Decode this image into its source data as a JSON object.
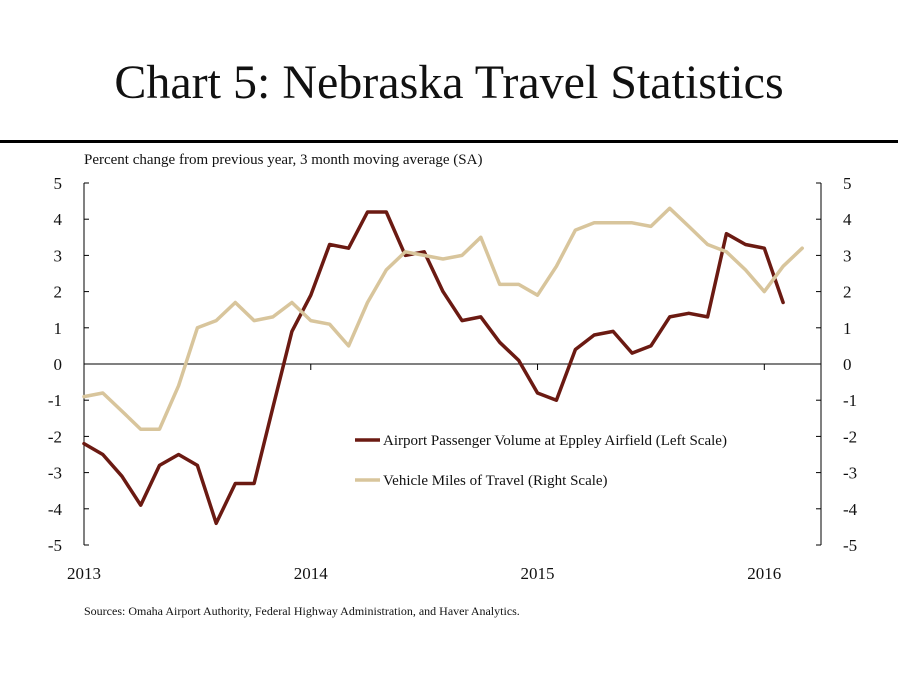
{
  "title": "Chart 5: Nebraska Travel Statistics",
  "source": "Sources: Omaha Airport Authority, Federal Highway Administration,  and Haver Analytics.",
  "chart_data": {
    "type": "line",
    "title": "Chart 5: Nebraska Travel Statistics",
    "subtitle": "Percent change from previous year, 3 month moving average (SA)",
    "x_ticks": [
      "2013",
      "2014",
      "2015",
      "2016"
    ],
    "x_tick_values": [
      2013.0,
      2014.0,
      2015.0,
      2016.0
    ],
    "xlim": [
      2013.0,
      2016.25
    ],
    "ylim_left": [
      -5,
      5
    ],
    "ylim_right": [
      -5,
      5
    ],
    "y_ticks_left": [
      "5",
      "4",
      "3",
      "2",
      "1",
      "0",
      "-1",
      "-2",
      "-3",
      "-4",
      "-5"
    ],
    "y_ticks_right": [
      "5",
      "4",
      "3",
      "2",
      "1",
      "0",
      "-1",
      "-2",
      "-3",
      "-4",
      "-5"
    ],
    "grid": false,
    "legend_position": "lower-center",
    "series": [
      {
        "name": "Airport Passenger Volume at Eppley Airfield (Left Scale)",
        "axis": "left",
        "color": "#6b1a12",
        "x": [
          2013.0,
          2013.083,
          2013.167,
          2013.25,
          2013.333,
          2013.417,
          2013.5,
          2013.583,
          2013.667,
          2013.75,
          2013.833,
          2013.917,
          2014.0,
          2014.083,
          2014.167,
          2014.25,
          2014.333,
          2014.417,
          2014.5,
          2014.583,
          2014.667,
          2014.75,
          2014.833,
          2014.917,
          2015.0,
          2015.083,
          2015.167,
          2015.25,
          2015.333,
          2015.417,
          2015.5,
          2015.583,
          2015.667,
          2015.75,
          2015.833,
          2015.917,
          2016.0,
          2016.083,
          2016.167
        ],
        "values": [
          -2.2,
          -2.5,
          -3.1,
          -3.9,
          -2.8,
          -2.5,
          -2.8,
          -4.4,
          -3.3,
          -3.3,
          -1.2,
          0.9,
          1.9,
          3.3,
          3.2,
          4.2,
          4.2,
          3.0,
          3.1,
          2.0,
          1.2,
          1.3,
          0.6,
          0.1,
          -0.8,
          -1.0,
          0.4,
          0.8,
          0.9,
          0.3,
          0.5,
          1.3,
          1.4,
          1.3,
          3.6,
          3.3,
          3.2,
          1.7,
          null
        ]
      },
      {
        "name": "Vehicle Miles of Travel (Right Scale)",
        "axis": "right",
        "color": "#d8c59c",
        "x": [
          2013.0,
          2013.083,
          2013.167,
          2013.25,
          2013.333,
          2013.417,
          2013.5,
          2013.583,
          2013.667,
          2013.75,
          2013.833,
          2013.917,
          2014.0,
          2014.083,
          2014.167,
          2014.25,
          2014.333,
          2014.417,
          2014.5,
          2014.583,
          2014.667,
          2014.75,
          2014.833,
          2014.917,
          2015.0,
          2015.083,
          2015.167,
          2015.25,
          2015.333,
          2015.417,
          2015.5,
          2015.583,
          2015.667,
          2015.75,
          2015.833,
          2015.917,
          2016.0,
          2016.083,
          2016.167
        ],
        "values": [
          -0.9,
          -0.8,
          -1.3,
          -1.8,
          -1.8,
          -0.6,
          1.0,
          1.2,
          1.7,
          1.2,
          1.3,
          1.7,
          1.2,
          1.1,
          0.5,
          1.7,
          2.6,
          3.1,
          3.0,
          2.9,
          3.0,
          3.5,
          2.2,
          2.2,
          1.9,
          2.7,
          3.7,
          3.9,
          3.9,
          3.9,
          3.8,
          4.3,
          3.8,
          3.3,
          3.1,
          2.6,
          2.0,
          2.7,
          3.2
        ]
      }
    ]
  }
}
